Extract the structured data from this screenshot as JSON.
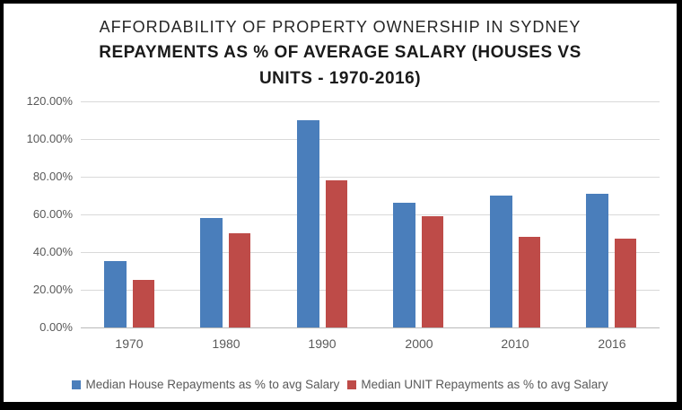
{
  "title": {
    "line1": "AFFORDABILITY OF PROPERTY OWNERSHIP IN SYDNEY",
    "line2": "REPAYMENTS AS % OF AVERAGE SALARY (HOUSES VS UNITS - 1970-2016)"
  },
  "colors": {
    "house_series": "#4A7EBB",
    "unit_series": "#BE4B48",
    "gridline": "#D9D9D9",
    "axis_line": "#B9B9B9",
    "tick_text": "#595959",
    "title_text": "#1A1A1A",
    "frame_border": "#000000",
    "background": "#FFFFFF"
  },
  "chart_data": {
    "type": "bar",
    "title": "AFFORDABILITY OF PROPERTY OWNERSHIP IN SYDNEY — REPAYMENTS AS % OF AVERAGE SALARY (HOUSES VS UNITS - 1970-2016)",
    "categories": [
      "1970",
      "1980",
      "1990",
      "2000",
      "2010",
      "2016"
    ],
    "series": [
      {
        "name": "Median House Repayments as % to avg Salary",
        "color": "#4A7EBB",
        "values": [
          35,
          58,
          110,
          66,
          70,
          71
        ]
      },
      {
        "name": "Median UNIT Repayments as % to avg Salary",
        "color": "#BE4B48",
        "values": [
          25,
          50,
          78,
          59,
          48,
          47
        ]
      }
    ],
    "xlabel": "",
    "ylabel": "",
    "ylim": [
      0,
      120
    ],
    "ytick_step": 20,
    "ytick_labels": [
      "0.00%",
      "20.00%",
      "40.00%",
      "60.00%",
      "80.00%",
      "100.00%",
      "120.00%"
    ],
    "grid": true,
    "legend_position": "bottom",
    "value_unit": "percent"
  }
}
